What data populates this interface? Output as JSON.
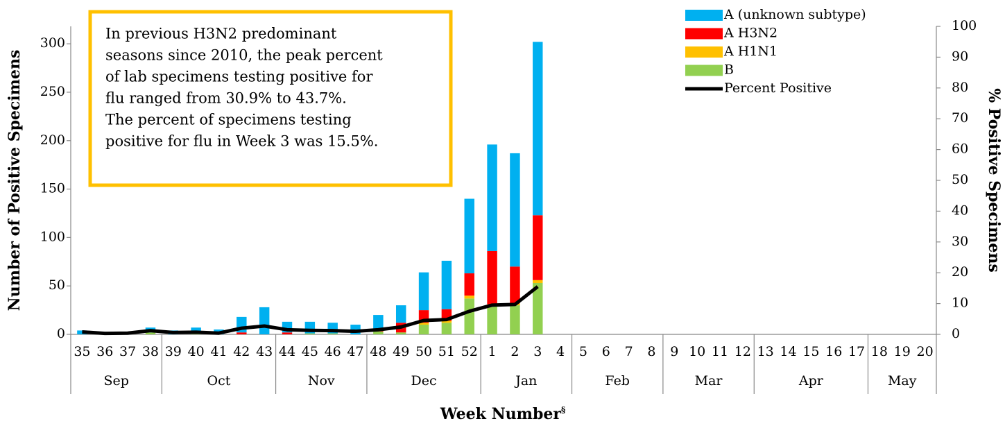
{
  "chart_data": {
    "type": "bar",
    "stacked": true,
    "ylabel": "Number of Positive Specimens",
    "y2label": "% Positive Specimens",
    "xlabel": "Week Number",
    "xlabel_footnote": "§",
    "annotation": [
      "In previous H3N2 predominant",
      "seasons since 2010, the peak percent",
      "of lab specimens testing positive for",
      "flu ranged from 30.9% to 43.7%.",
      "The percent of specimens testing",
      "positive for flu in Week 3 was 15.5%."
    ],
    "categories": [
      "35",
      "36",
      "37",
      "38",
      "39",
      "40",
      "41",
      "42",
      "43",
      "44",
      "45",
      "46",
      "47",
      "48",
      "49",
      "50",
      "51",
      "52",
      "1",
      "2",
      "3",
      "4",
      "5",
      "6",
      "7",
      "8",
      "9",
      "10",
      "11",
      "12",
      "13",
      "14",
      "15",
      "16",
      "17",
      "18",
      "19",
      "20"
    ],
    "month_groups": [
      {
        "label": "Sep",
        "weeks": 4
      },
      {
        "label": "Oct",
        "weeks": 5
      },
      {
        "label": "Nov",
        "weeks": 4
      },
      {
        "label": "Dec",
        "weeks": 5
      },
      {
        "label": "Jan",
        "weeks": 4
      },
      {
        "label": "Feb",
        "weeks": 4
      },
      {
        "label": "Mar",
        "weeks": 4
      },
      {
        "label": "Apr",
        "weeks": 5
      },
      {
        "label": "May",
        "weeks": 3
      }
    ],
    "series": [
      {
        "name": "A (unknown subtype)",
        "color": "#00B0F0",
        "values": [
          4,
          1,
          1,
          5,
          4,
          6,
          5,
          16,
          28,
          11,
          12,
          11,
          10,
          16,
          18,
          39,
          50,
          77,
          110,
          117,
          179,
          null,
          null,
          null,
          null,
          null,
          null,
          null,
          null,
          null,
          null,
          null,
          null,
          null,
          null,
          null,
          null,
          null
        ]
      },
      {
        "name": "A H3N2",
        "color": "#FF0000",
        "values": [
          0,
          0,
          0,
          0,
          0,
          0,
          0,
          2,
          0,
          2,
          0,
          0,
          0,
          1,
          10,
          13,
          12,
          23,
          55,
          38,
          67,
          null,
          null,
          null,
          null,
          null,
          null,
          null,
          null,
          null,
          null,
          null,
          null,
          null,
          null,
          null,
          null,
          null
        ]
      },
      {
        "name": "A H1N1",
        "color": "#FFC000",
        "values": [
          0,
          0,
          0,
          0,
          0,
          0,
          0,
          0,
          0,
          0,
          0,
          0,
          0,
          0,
          0,
          2,
          2,
          3,
          1,
          2,
          3,
          null,
          null,
          null,
          null,
          null,
          null,
          null,
          null,
          null,
          null,
          null,
          null,
          null,
          null,
          null,
          null,
          null
        ]
      },
      {
        "name": "B",
        "color": "#92D050",
        "values": [
          0,
          0,
          0,
          2,
          0,
          1,
          0,
          0,
          0,
          0,
          1,
          1,
          0,
          3,
          2,
          10,
          12,
          37,
          30,
          30,
          53,
          null,
          null,
          null,
          null,
          null,
          null,
          null,
          null,
          null,
          null,
          null,
          null,
          null,
          null,
          null,
          null,
          null
        ]
      },
      {
        "name": "Percent Positive",
        "color": "#000000",
        "type": "line",
        "axis": "y2",
        "values": [
          0.8,
          0.3,
          0.4,
          1.2,
          0.6,
          0.7,
          0.4,
          2.0,
          2.7,
          1.5,
          1.3,
          1.2,
          1.0,
          1.5,
          2.4,
          4.5,
          4.8,
          7.5,
          9.5,
          9.7,
          15.5,
          null,
          null,
          null,
          null,
          null,
          null,
          null,
          null,
          null,
          null,
          null,
          null,
          null,
          null,
          null,
          null,
          null
        ]
      }
    ],
    "ylim": [
      0,
      318
    ],
    "yticks": [
      0,
      50,
      100,
      150,
      200,
      250,
      300
    ],
    "y2lim": [
      0,
      100
    ],
    "y2ticks": [
      0,
      10,
      20,
      30,
      40,
      50,
      60,
      70,
      80,
      90,
      100
    ],
    "legend": "top-right"
  }
}
